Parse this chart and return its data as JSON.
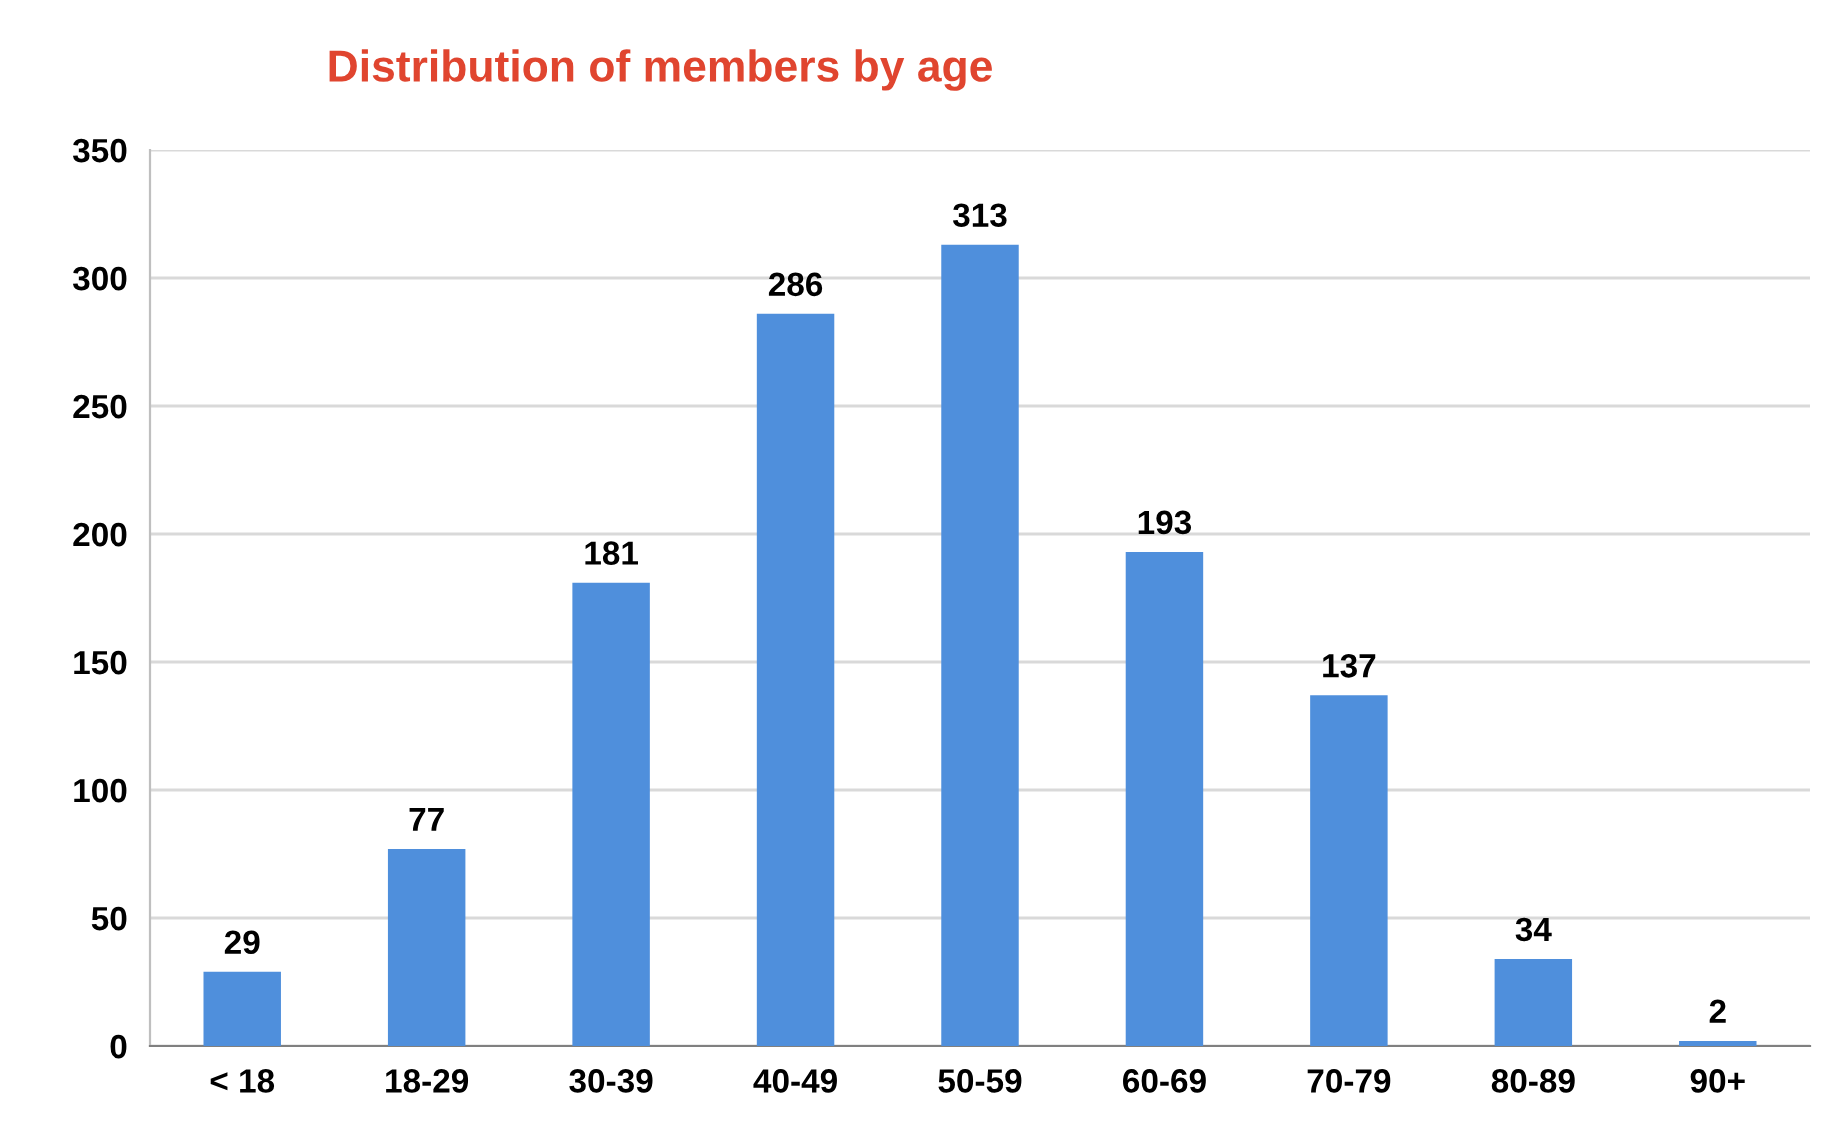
{
  "chart_data": {
    "type": "bar",
    "title": "Distribution of members by age",
    "categories": [
      "< 18",
      "18-29",
      "30-39",
      "40-49",
      "50-59",
      "60-69",
      "70-79",
      "80-89",
      "90+"
    ],
    "values": [
      29,
      77,
      181,
      286,
      313,
      193,
      137,
      34,
      2
    ],
    "color": "#4f8fdc",
    "ylim": [
      0,
      350
    ],
    "yticks": [
      0,
      50,
      100,
      150,
      200,
      250,
      300,
      350
    ],
    "grid": "y",
    "data_labels": true
  }
}
